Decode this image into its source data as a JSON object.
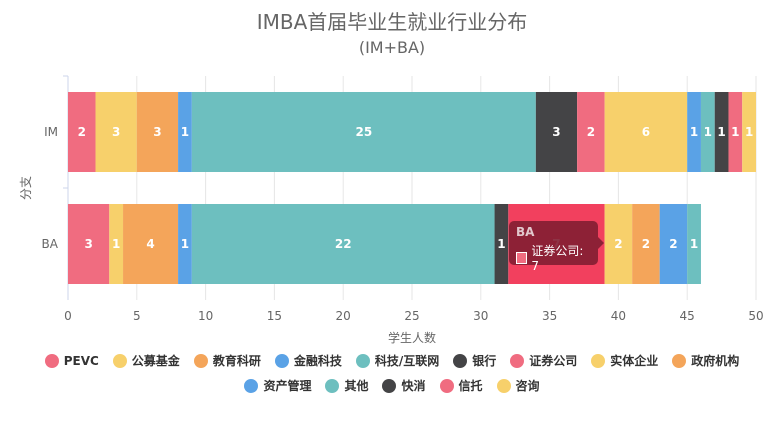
{
  "chart_data": {
    "type": "bar",
    "orientation": "horizontal",
    "stacked": true,
    "title": "IMBA首届毕业生就业行业分布",
    "subtitle": "(IM+BA)",
    "xlabel": "学生人数",
    "ylabel": "分支",
    "xlim": [
      0,
      50
    ],
    "xticks": [
      "0",
      "5",
      "10",
      "15",
      "20",
      "25",
      "30",
      "35",
      "40",
      "45",
      "50"
    ],
    "categories": [
      "IM",
      "BA"
    ],
    "grid": true,
    "legend_position": "bottom",
    "series": [
      {
        "name": "PEVC",
        "color": "#f06c80",
        "values": [
          2,
          3
        ]
      },
      {
        "name": "公募基金",
        "color": "#f7d06b",
        "values": [
          3,
          1
        ]
      },
      {
        "name": "教育科研",
        "color": "#f4a55a",
        "values": [
          3,
          4
        ]
      },
      {
        "name": "金融科技",
        "color": "#5aa2e6",
        "values": [
          1,
          1
        ]
      },
      {
        "name": "科技/互联网",
        "color": "#6dbfbf",
        "values": [
          25,
          22
        ]
      },
      {
        "name": "银行",
        "color": "#444446",
        "values": [
          3,
          1
        ]
      },
      {
        "name": "证券公司",
        "color": "#f06c80",
        "values": [
          2,
          7
        ]
      },
      {
        "name": "实体企业",
        "color": "#f7d06b",
        "values": [
          6,
          2
        ]
      },
      {
        "name": "政府机构",
        "color": "#f4a55a",
        "values": [
          0,
          2
        ]
      },
      {
        "name": "资产管理",
        "color": "#5aa2e6",
        "values": [
          1,
          2
        ]
      },
      {
        "name": "其他",
        "color": "#6dbfbf",
        "values": [
          1,
          1
        ]
      },
      {
        "name": "快消",
        "color": "#444446",
        "values": [
          1,
          0
        ]
      },
      {
        "name": "信托",
        "color": "#f06c80",
        "values": [
          1,
          0
        ]
      },
      {
        "name": "咨询",
        "color": "#f7d06b",
        "values": [
          1,
          0
        ]
      }
    ],
    "highlight": {
      "category": "BA",
      "series": "证券公司",
      "color": "#f2405e"
    },
    "tooltip": {
      "title": "BA",
      "label": "证券公司: 7"
    }
  }
}
